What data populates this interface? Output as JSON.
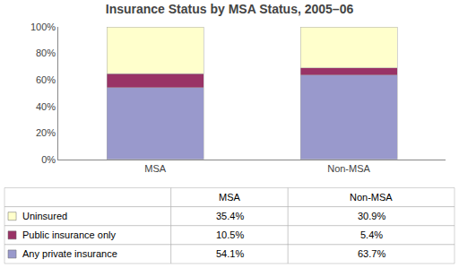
{
  "chart_data": {
    "type": "bar",
    "stacked": true,
    "title": "Insurance Status by MSA Status, 2005–06",
    "categories": [
      "MSA",
      "Non-MSA"
    ],
    "series": [
      {
        "name": "Any private insurance",
        "color": "#9999cc",
        "values": [
          54.1,
          63.7
        ],
        "value_labels": [
          "54.1%",
          "63.7%"
        ]
      },
      {
        "name": "Public insurance only",
        "color": "#993366",
        "values": [
          10.5,
          5.4
        ],
        "value_labels": [
          "10.5%",
          "5.4%"
        ]
      },
      {
        "name": "Uninsured",
        "color": "#ffffcc",
        "values": [
          35.4,
          30.9
        ],
        "value_labels": [
          "35.4%",
          "30.9%"
        ]
      }
    ],
    "ylim": [
      0,
      100
    ],
    "yticks": [
      {
        "value": 0,
        "label": "0%"
      },
      {
        "value": 20,
        "label": "20%"
      },
      {
        "value": 40,
        "label": "40%"
      },
      {
        "value": 60,
        "label": "60%"
      },
      {
        "value": 80,
        "label": "80%"
      },
      {
        "value": 100,
        "label": "100%"
      }
    ],
    "grid": false
  }
}
